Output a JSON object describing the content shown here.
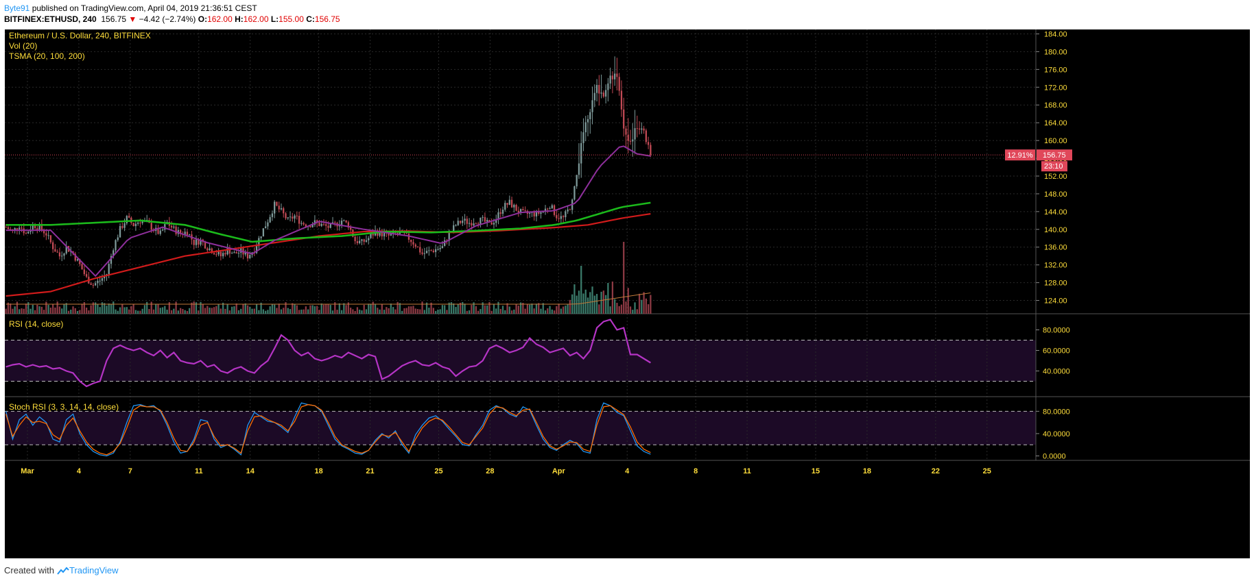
{
  "header": {
    "user": "Byte91",
    "published": " published on TradingView.com, April 04, 2019 21:36:51 CEST",
    "symbol": "BITFINEX:ETHUSD, 240",
    "last": "156.75",
    "change_arrow": "▼",
    "change": "−4.42 (−2.74%)",
    "o_label": "O:",
    "o_val": "162.00",
    "h_label": "H:",
    "h_val": "162.00",
    "l_label": "L:",
    "l_val": "155.00",
    "c_label": "C:",
    "c_val": "156.75"
  },
  "chart_data": [
    {
      "type": "candlestick",
      "title": "Ethereum / U.S. Dollar, 240, BITFINEX",
      "indicators": [
        "Vol (20)",
        "TSMA (20, 100, 200)"
      ],
      "x_ticks": [
        "Mar",
        "4",
        "7",
        "11",
        "14",
        "18",
        "21",
        "25",
        "28",
        "Apr",
        "4",
        "8",
        "11",
        "15",
        "18",
        "22",
        "25"
      ],
      "y_ticks": [
        "184.00",
        "180.00",
        "176.00",
        "172.00",
        "168.00",
        "164.00",
        "160.00",
        "156.00",
        "152.00",
        "148.00",
        "144.00",
        "140.00",
        "136.00",
        "132.00",
        "128.00",
        "124.00"
      ],
      "ylim": [
        121,
        185
      ],
      "price_label": "156.75",
      "price_change_pct": "12.91%",
      "countdown": "23:10",
      "close_path": [
        [
          0,
          140.5
        ],
        [
          3,
          139.5
        ],
        [
          6,
          141
        ],
        [
          9,
          139
        ],
        [
          12,
          141
        ],
        [
          15,
          140.5
        ],
        [
          18,
          139
        ],
        [
          21,
          136
        ],
        [
          24,
          134
        ],
        [
          27,
          136
        ],
        [
          30,
          134.5
        ],
        [
          33,
          132
        ],
        [
          36,
          129
        ],
        [
          39,
          127.5
        ],
        [
          42,
          128.5
        ],
        [
          45,
          130
        ],
        [
          48,
          136
        ],
        [
          51,
          140
        ],
        [
          54,
          142.5
        ],
        [
          57,
          141
        ],
        [
          60,
          142
        ],
        [
          63,
          141.5
        ],
        [
          66,
          140
        ],
        [
          69,
          139
        ],
        [
          72,
          141.5
        ],
        [
          75,
          140
        ],
        [
          78,
          139
        ],
        [
          81,
          139.5
        ],
        [
          84,
          137
        ],
        [
          87,
          137.5
        ],
        [
          90,
          136
        ],
        [
          93,
          135
        ],
        [
          96,
          134
        ],
        [
          99,
          135.5
        ],
        [
          102,
          134.5
        ],
        [
          105,
          135
        ],
        [
          108,
          134
        ],
        [
          111,
          135.5
        ],
        [
          114,
          139
        ],
        [
          117,
          142
        ],
        [
          120,
          145.5
        ],
        [
          123,
          144
        ],
        [
          126,
          142
        ],
        [
          129,
          143
        ],
        [
          132,
          141.5
        ],
        [
          135,
          141
        ],
        [
          138,
          141.5
        ],
        [
          141,
          141
        ],
        [
          144,
          140.5
        ],
        [
          147,
          141
        ],
        [
          150,
          142
        ],
        [
          153,
          141
        ],
        [
          156,
          137.5
        ],
        [
          159,
          137
        ],
        [
          162,
          138
        ],
        [
          165,
          139.5
        ],
        [
          168,
          139
        ],
        [
          171,
          138.5
        ],
        [
          174,
          139
        ],
        [
          177,
          139
        ],
        [
          180,
          138
        ],
        [
          183,
          136.5
        ],
        [
          186,
          134.5
        ],
        [
          189,
          135
        ],
        [
          192,
          135.5
        ],
        [
          195,
          136
        ],
        [
          198,
          139
        ],
        [
          201,
          141
        ],
        [
          204,
          142
        ],
        [
          207,
          141.5
        ],
        [
          210,
          142
        ],
        [
          213,
          142
        ],
        [
          216,
          141
        ],
        [
          219,
          142.5
        ],
        [
          222,
          145
        ],
        [
          225,
          146
        ],
        [
          228,
          144.5
        ],
        [
          231,
          143.5
        ],
        [
          234,
          143.5
        ],
        [
          237,
          143.5
        ],
        [
          240,
          144
        ],
        [
          243,
          145.5
        ],
        [
          246,
          143
        ],
        [
          249,
          142.5
        ],
        [
          252,
          145
        ],
        [
          255,
          152
        ],
        [
          258,
          162
        ],
        [
          261,
          167
        ],
        [
          264,
          172
        ],
        [
          267,
          170
        ],
        [
          270,
          174
        ],
        [
          273,
          175
        ],
        [
          276,
          162
        ],
        [
          279,
          160
        ],
        [
          282,
          163
        ],
        [
          285,
          162
        ],
        [
          288,
          156.75
        ]
      ],
      "sma20_path": [
        [
          0,
          139.8
        ],
        [
          20,
          139.8
        ],
        [
          40,
          129.5
        ],
        [
          55,
          138
        ],
        [
          70,
          140.5
        ],
        [
          90,
          137
        ],
        [
          110,
          134.5
        ],
        [
          120,
          137.5
        ],
        [
          140,
          141.8
        ],
        [
          160,
          140
        ],
        [
          180,
          138.5
        ],
        [
          195,
          136.8
        ],
        [
          210,
          140.8
        ],
        [
          230,
          143.8
        ],
        [
          245,
          144.2
        ],
        [
          255,
          146
        ],
        [
          265,
          154
        ],
        [
          275,
          159
        ],
        [
          282,
          157
        ],
        [
          288,
          156.5
        ]
      ],
      "sma100_path": [
        [
          0,
          141
        ],
        [
          20,
          141
        ],
        [
          40,
          141.5
        ],
        [
          60,
          142
        ],
        [
          80,
          141
        ],
        [
          95,
          139
        ],
        [
          110,
          137.2
        ],
        [
          130,
          138
        ],
        [
          150,
          138.5
        ],
        [
          170,
          139.5
        ],
        [
          190,
          139.3
        ],
        [
          210,
          139.7
        ],
        [
          230,
          140.2
        ],
        [
          245,
          141
        ],
        [
          255,
          142
        ],
        [
          265,
          143.5
        ],
        [
          275,
          145
        ],
        [
          288,
          146
        ]
      ],
      "sma200_path": [
        [
          0,
          125
        ],
        [
          20,
          126
        ],
        [
          40,
          129
        ],
        [
          60,
          131.5
        ],
        [
          80,
          134
        ],
        [
          100,
          135.5
        ],
        [
          120,
          137
        ],
        [
          140,
          138.5
        ],
        [
          160,
          139.5
        ],
        [
          180,
          139.6
        ],
        [
          200,
          139.3
        ],
        [
          220,
          139.7
        ],
        [
          245,
          140.4
        ],
        [
          260,
          141
        ],
        [
          275,
          142.5
        ],
        [
          288,
          143.5
        ]
      ]
    },
    {
      "type": "line",
      "title": "RSI (14, close)",
      "y_ticks": [
        "80.0000",
        "60.0000",
        "40.0000"
      ],
      "ylim": [
        15,
        95
      ],
      "bands": [
        30,
        70
      ],
      "series": [
        {
          "values": [
            44,
            46,
            47,
            44,
            46,
            44,
            45,
            42,
            43,
            40,
            38,
            30,
            25,
            28,
            30,
            50,
            62,
            65,
            62,
            60,
            62,
            58,
            55,
            60,
            53,
            58,
            50,
            48,
            47,
            50,
            44,
            46,
            40,
            38,
            42,
            44,
            40,
            38,
            45,
            50,
            62,
            75,
            70,
            60,
            55,
            58,
            52,
            50,
            52,
            55,
            53,
            58,
            55,
            52,
            56,
            54,
            32,
            35,
            40,
            45,
            48,
            50,
            46,
            45,
            48,
            44,
            42,
            35,
            40,
            44,
            45,
            50,
            62,
            65,
            62,
            58,
            60,
            63,
            72,
            66,
            63,
            58,
            60,
            62,
            55,
            58,
            52,
            60,
            82,
            88,
            90,
            80,
            82,
            56,
            56,
            52,
            48
          ]
        }
      ]
    },
    {
      "type": "line",
      "title": "Stoch RSI (3, 3, 14, 14, close)",
      "y_ticks": [
        "80.0000",
        "40.0000",
        "0.0000"
      ],
      "ylim": [
        -8,
        105
      ],
      "bands": [
        20,
        80
      ],
      "series": [
        {
          "color": "#2196f3",
          "values": [
            80,
            30,
            65,
            75,
            55,
            70,
            60,
            30,
            25,
            65,
            75,
            40,
            20,
            8,
            2,
            0,
            5,
            25,
            60,
            90,
            92,
            88,
            90,
            80,
            55,
            25,
            5,
            8,
            30,
            65,
            62,
            30,
            15,
            20,
            12,
            2,
            55,
            78,
            70,
            62,
            60,
            52,
            42,
            70,
            95,
            92,
            90,
            80,
            55,
            30,
            18,
            12,
            5,
            3,
            10,
            28,
            40,
            32,
            45,
            20,
            5,
            38,
            55,
            68,
            72,
            62,
            48,
            35,
            20,
            18,
            38,
            55,
            82,
            90,
            85,
            75,
            70,
            88,
            82,
            55,
            30,
            15,
            10,
            20,
            28,
            22,
            8,
            5,
            65,
            95,
            90,
            78,
            72,
            45,
            18,
            8,
            3
          ]
        },
        {
          "color": "#ff6d00",
          "values": [
            75,
            35,
            55,
            70,
            60,
            62,
            58,
            38,
            30,
            55,
            68,
            45,
            25,
            12,
            5,
            2,
            8,
            22,
            50,
            82,
            90,
            88,
            88,
            82,
            60,
            32,
            10,
            8,
            25,
            55,
            60,
            35,
            18,
            20,
            14,
            5,
            45,
            70,
            72,
            65,
            60,
            55,
            45,
            62,
            88,
            92,
            90,
            82,
            60,
            35,
            20,
            14,
            8,
            5,
            10,
            25,
            38,
            35,
            42,
            25,
            8,
            30,
            50,
            62,
            68,
            64,
            52,
            38,
            24,
            20,
            35,
            50,
            75,
            88,
            86,
            78,
            72,
            82,
            84,
            60,
            35,
            18,
            12,
            18,
            25,
            24,
            12,
            8,
            55,
            88,
            90,
            82,
            74,
            52,
            25,
            12,
            6
          ]
        }
      ]
    }
  ],
  "footer": {
    "created": "Created with",
    "brand": "TradingView"
  },
  "colors": {
    "background": "#000000",
    "up": "#7e9a9a",
    "down": "#c24a55",
    "sma20": "#8e2f9c",
    "sma100": "#1bb91b",
    "sma200": "#d11b1b",
    "rsi": "#b534c5",
    "text": "#ffde3b",
    "price_tag": "#e0475a"
  }
}
